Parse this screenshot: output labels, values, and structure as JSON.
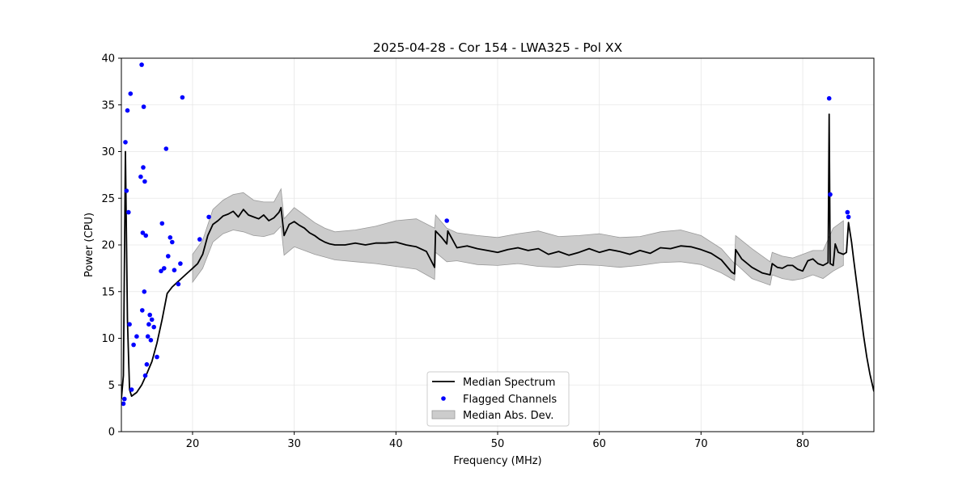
{
  "chart_data": {
    "type": "line",
    "title": "2025-04-28 - Cor 154 - LWA325 - Pol XX",
    "xlabel": "Frequency (MHz)",
    "ylabel": "Power (CPU)",
    "xlim": [
      13.0,
      87.0
    ],
    "ylim": [
      0,
      40
    ],
    "xticks": [
      20,
      30,
      40,
      50,
      60,
      70,
      80
    ],
    "yticks": [
      0,
      5,
      10,
      15,
      20,
      25,
      30,
      35,
      40
    ],
    "grid": true,
    "legend_position": "lower-center",
    "colors": {
      "median": "#000000",
      "flagged": "#0000ff",
      "mad_fill": "#cccccc",
      "mad_edge": "#999999"
    },
    "series": [
      {
        "name": "Median Spectrum",
        "kind": "line",
        "x": [
          13.0,
          13.2,
          13.4,
          13.6,
          13.8,
          14.0,
          14.5,
          15.0,
          15.5,
          16.0,
          16.5,
          17.0,
          17.5,
          18.0,
          18.5,
          19.0,
          19.5,
          20.0,
          20.5,
          21.0,
          21.5,
          22.0,
          22.5,
          23.0,
          23.5,
          24.0,
          24.5,
          25.0,
          25.5,
          26.0,
          26.5,
          27.0,
          27.5,
          28.0,
          28.5,
          28.7,
          29.0,
          29.5,
          30.0,
          30.5,
          31.0,
          31.5,
          32.0,
          32.5,
          33.0,
          33.5,
          34.0,
          35.0,
          36.0,
          37.0,
          38.0,
          39.0,
          40.0,
          41.0,
          42.0,
          43.0,
          43.8,
          43.9,
          44.5,
          45.0,
          45.1,
          46.0,
          47.0,
          48.0,
          49.0,
          50.0,
          51.0,
          52.0,
          53.0,
          54.0,
          55.0,
          56.0,
          57.0,
          58.0,
          59.0,
          60.0,
          61.0,
          62.0,
          63.0,
          64.0,
          65.0,
          66.0,
          67.0,
          68.0,
          69.0,
          70.0,
          71.0,
          72.0,
          73.0,
          73.3,
          73.4,
          74.0,
          75.0,
          76.0,
          76.8,
          77.0,
          77.5,
          78.0,
          78.5,
          79.0,
          79.5,
          80.0,
          80.5,
          81.0,
          81.5,
          82.0,
          82.5,
          82.6,
          82.7,
          83.0,
          83.2,
          83.5,
          84.0,
          84.3,
          84.5,
          84.8,
          85.0,
          85.3,
          85.6,
          86.0,
          86.3,
          86.6,
          87.0
        ],
        "y": [
          3.5,
          6.0,
          30.0,
          12.0,
          4.5,
          3.8,
          4.2,
          5.0,
          6.2,
          7.5,
          9.5,
          12.0,
          14.8,
          15.5,
          16.0,
          16.5,
          17.0,
          17.5,
          18.0,
          19.0,
          21.0,
          22.2,
          22.6,
          23.1,
          23.3,
          23.6,
          23.0,
          23.8,
          23.2,
          23.0,
          22.8,
          23.2,
          22.6,
          22.9,
          23.5,
          24.0,
          21.0,
          22.2,
          22.5,
          22.1,
          21.8,
          21.3,
          21.0,
          20.6,
          20.3,
          20.1,
          20.0,
          20.0,
          20.2,
          20.0,
          20.2,
          20.2,
          20.3,
          20.0,
          19.8,
          19.3,
          17.6,
          21.5,
          20.8,
          20.1,
          21.5,
          19.7,
          19.9,
          19.6,
          19.4,
          19.2,
          19.5,
          19.7,
          19.4,
          19.6,
          19.0,
          19.3,
          18.9,
          19.2,
          19.6,
          19.2,
          19.5,
          19.3,
          19.0,
          19.4,
          19.1,
          19.7,
          19.6,
          19.9,
          19.8,
          19.5,
          19.1,
          18.4,
          17.1,
          16.9,
          19.5,
          18.5,
          17.6,
          17.0,
          16.8,
          18.0,
          17.6,
          17.5,
          17.8,
          17.8,
          17.4,
          17.2,
          18.3,
          18.5,
          18.0,
          17.8,
          18.1,
          34.0,
          18.0,
          17.8,
          20.1,
          19.2,
          19.0,
          19.2,
          22.4,
          20.3,
          18.5,
          16.0,
          13.5,
          10.2,
          8.0,
          6.2,
          4.3
        ]
      },
      {
        "name": "Flagged Channels",
        "kind": "scatter",
        "x": [
          13.2,
          13.3,
          13.4,
          13.5,
          13.6,
          13.7,
          13.8,
          13.9,
          14.0,
          14.2,
          14.5,
          14.9,
          15.0,
          15.05,
          15.1,
          15.15,
          15.2,
          15.25,
          15.3,
          15.35,
          15.4,
          15.5,
          15.6,
          15.7,
          15.8,
          15.9,
          16.0,
          16.2,
          16.5,
          16.9,
          17.0,
          17.2,
          17.4,
          17.6,
          17.8,
          18.0,
          18.2,
          18.6,
          18.8,
          19.0,
          20.7,
          21.6,
          45.0,
          82.6,
          82.7,
          84.4,
          84.5
        ],
        "y": [
          3.0,
          3.5,
          31.0,
          25.8,
          34.4,
          23.5,
          11.5,
          36.2,
          4.5,
          9.3,
          10.2,
          27.3,
          39.3,
          13.0,
          21.3,
          28.3,
          34.8,
          15.0,
          26.8,
          6.0,
          21.0,
          7.2,
          10.2,
          11.5,
          12.5,
          9.8,
          12.0,
          11.2,
          8.0,
          17.2,
          22.3,
          17.5,
          30.3,
          18.8,
          20.8,
          20.3,
          17.3,
          15.8,
          18.0,
          35.8,
          20.6,
          23.0,
          22.6,
          35.7,
          25.4,
          23.5,
          23.0
        ]
      },
      {
        "name": "Median Abs. Dev.",
        "kind": "band",
        "x": [
          20.0,
          21.0,
          22.0,
          23.0,
          24.0,
          25.0,
          26.0,
          27.0,
          28.0,
          28.7,
          29.0,
          30.0,
          31.0,
          32.0,
          33.0,
          34.0,
          36.0,
          38.0,
          40.0,
          42.0,
          43.8,
          43.9,
          45.0,
          46.0,
          48.0,
          50.0,
          52.0,
          54.0,
          56.0,
          58.0,
          60.0,
          62.0,
          64.0,
          66.0,
          68.0,
          70.0,
          72.0,
          73.3,
          73.4,
          75.0,
          76.8,
          77.0,
          78.0,
          79.0,
          80.0,
          81.0,
          82.0,
          83.0,
          84.0
        ],
        "lower": [
          16.0,
          17.5,
          20.3,
          21.2,
          21.6,
          21.4,
          21.0,
          20.9,
          21.2,
          22.0,
          18.9,
          19.8,
          19.4,
          19.0,
          18.7,
          18.4,
          18.2,
          18.0,
          17.7,
          17.4,
          16.3,
          19.2,
          18.2,
          18.3,
          17.9,
          17.8,
          18.0,
          17.7,
          17.6,
          17.9,
          17.8,
          17.6,
          17.8,
          18.1,
          18.2,
          17.9,
          17.0,
          16.2,
          18.0,
          16.4,
          15.7,
          16.8,
          16.4,
          16.2,
          16.4,
          16.8,
          16.4,
          17.2,
          17.8
        ],
        "upper": [
          19.0,
          20.5,
          23.8,
          24.8,
          25.4,
          25.6,
          24.8,
          24.6,
          24.6,
          26.0,
          22.8,
          24.0,
          23.2,
          22.4,
          21.8,
          21.4,
          21.6,
          22.0,
          22.6,
          22.8,
          21.8,
          23.2,
          21.8,
          21.3,
          21.0,
          20.8,
          21.2,
          21.5,
          20.9,
          21.0,
          21.2,
          20.8,
          20.9,
          21.4,
          21.6,
          21.0,
          19.6,
          18.0,
          21.0,
          19.6,
          18.2,
          19.2,
          18.8,
          18.6,
          19.0,
          19.4,
          19.4,
          21.8,
          22.6
        ]
      }
    ]
  }
}
